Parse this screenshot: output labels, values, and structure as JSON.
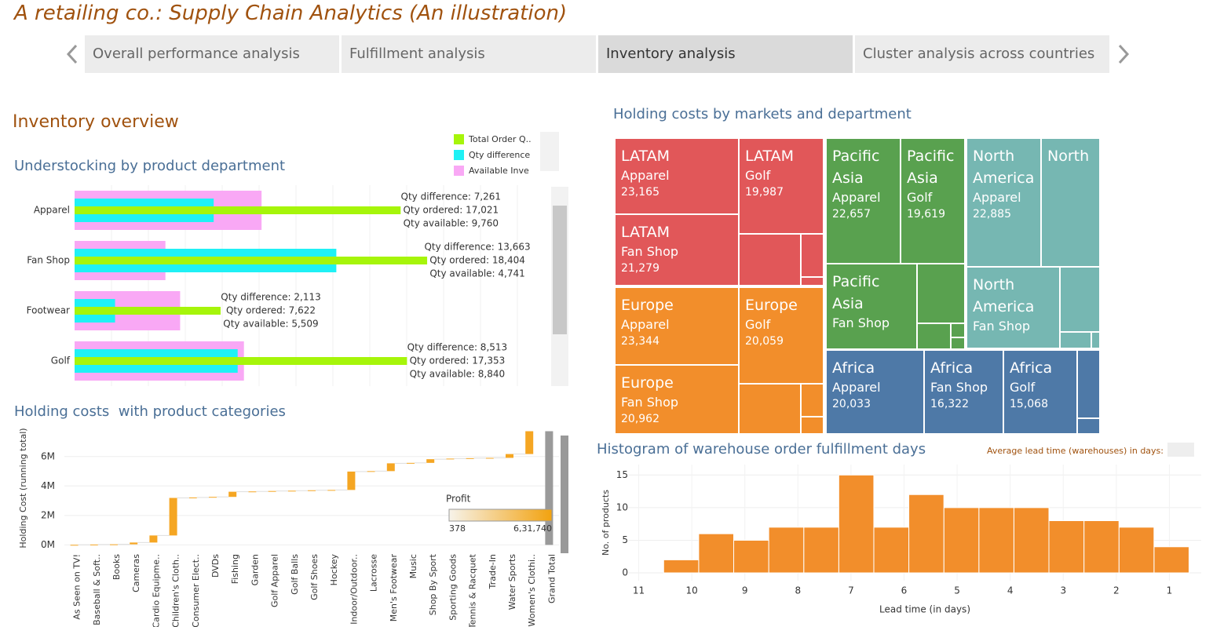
{
  "title": "A retailing co.: Supply Chain Analytics (An illustration)",
  "tabs": [
    "Overall performance analysis",
    "Fulfillment analysis",
    "Inventory analysis",
    "Cluster analysis across countries"
  ],
  "active_tab": 2,
  "section_title": "Inventory overview",
  "chart_data": [
    {
      "type": "bar",
      "orientation": "horizontal",
      "title": "Understocking by product department",
      "categories": [
        "Apparel",
        "Fan Shop",
        "Footwear",
        "Golf"
      ],
      "series": [
        {
          "name": "Total Order Q..",
          "color": "#a6f50a",
          "values": [
            17021,
            18404,
            7622,
            17353
          ],
          "value_labels": [
            "Qty ordered: 17,021",
            "Qty ordered: 18,404",
            "Qty ordered: 7,622",
            "Qty ordered: 17,353"
          ]
        },
        {
          "name": "Qty difference",
          "color": "#1ff1f5",
          "values": [
            7261,
            13663,
            2113,
            8513
          ],
          "value_labels": [
            "Qty difference: 7,261",
            "Qty difference: 13,663",
            "Qty difference: 2,113",
            "Qty difference: 8,513"
          ]
        },
        {
          "name": "Available Inve",
          "color": "#f9a8f5",
          "values": [
            9760,
            4741,
            5509,
            8840
          ],
          "value_labels": [
            "Qty available: 9,760",
            "Qty available: 4,741",
            "Qty available: 5,509",
            "Qty available: 8,840"
          ]
        }
      ],
      "xlim": [
        0,
        25000
      ],
      "grid": true
    },
    {
      "type": "waterfall",
      "title": "Holding costs  with product categories",
      "y_label": "Holding Cost (running total)",
      "categories": [
        "As Seen on TV!",
        "Baseball & Soft..",
        "Books",
        "Cameras",
        "Cardio Equipme..",
        "Children's Cloth..",
        "Consumer Elect..",
        "DVDs",
        "Fishing",
        "Garden",
        "Golf Apparel",
        "Golf Balls",
        "Golf Shoes",
        "Hockey",
        "Indoor/Outdoor..",
        "Lacrosse",
        "Men's Footwear",
        "Music",
        "Shop By Sport",
        "Sporting Goods",
        "Tennis & Racquet",
        "Trade-In",
        "Water Sports",
        "Women's Clothi.."
      ],
      "values": [
        5000,
        20000,
        15000,
        120000,
        480000,
        2550000,
        30000,
        40000,
        350000,
        20000,
        30000,
        20000,
        30000,
        20000,
        1250000,
        30000,
        530000,
        30000,
        250000,
        40000,
        30000,
        20000,
        260000,
        1550000
      ],
      "total_label": "Grand Total",
      "color": "#f5a623",
      "total_color": "#9a9a9a",
      "ylim": [
        -300000,
        7800000
      ],
      "yticks": [
        {
          "value": 0,
          "label": "0M"
        },
        {
          "value": 2000000,
          "label": "2M"
        },
        {
          "value": 4000000,
          "label": "4M"
        },
        {
          "value": 6000000,
          "label": "6M"
        }
      ],
      "color_legend": {
        "title": "Profit",
        "min": {
          "value": 378,
          "label": "378"
        },
        "max": {
          "value": 631740,
          "label": "6,31,740"
        },
        "colors": [
          "#f7f3ea",
          "#f2a20f"
        ]
      }
    },
    {
      "type": "treemap",
      "title": "Holding costs by markets and department",
      "colors": {
        "LATAM": "#e15759",
        "Europe": "#f28e2b",
        "Pacific Asia": "#59a14f",
        "North America": "#76b7b2",
        "North": "#76b7b2",
        "Africa": "#4e79a7"
      },
      "items": [
        {
          "market": "LATAM",
          "department": "Apparel",
          "value": 23165,
          "value_label": "23,165"
        },
        {
          "market": "LATAM",
          "department": "Golf",
          "value": 19987,
          "value_label": "19,987"
        },
        {
          "market": "LATAM",
          "department": "Fan Shop",
          "value": 21279,
          "value_label": "21,279"
        },
        {
          "market": "Europe",
          "department": "Apparel",
          "value": 23344,
          "value_label": "23,344"
        },
        {
          "market": "Europe",
          "department": "Golf",
          "value": 20059,
          "value_label": "20,059"
        },
        {
          "market": "Europe",
          "department": "Fan Shop",
          "value": 20962,
          "value_label": "20,962"
        },
        {
          "market": "Pacific Asia",
          "department": "Apparel",
          "value": 22657,
          "value_label": "22,657"
        },
        {
          "market": "Pacific Asia",
          "department": "Golf",
          "value": 19619,
          "value_label": "19,619"
        },
        {
          "market": "Pacific Asia",
          "department": "Fan Shop",
          "value": null
        },
        {
          "market": "North America",
          "department": "Apparel",
          "value": 22885,
          "value_label": "22,885"
        },
        {
          "market": "North",
          "department": null,
          "value": null
        },
        {
          "market": "North America",
          "department": "Fan Shop",
          "value": null
        },
        {
          "market": "Africa",
          "department": "Apparel",
          "value": 20033,
          "value_label": "20,033"
        },
        {
          "market": "Africa",
          "department": "Fan Shop",
          "value": 16322,
          "value_label": "16,322"
        },
        {
          "market": "Africa",
          "department": "Golf",
          "value": 15068,
          "value_label": "15,068"
        }
      ]
    },
    {
      "type": "histogram",
      "title": "Histogram of warehouse order fulfillment days",
      "x_label": "Lead time (in days)",
      "y_label": "No. of products",
      "control_label": "Average lead time (warehouses) in days:",
      "bins": [
        0.63,
        1.29,
        1.95,
        2.61,
        3.27,
        3.93,
        4.59,
        5.25,
        5.91,
        6.57,
        7.23,
        7.89,
        8.55,
        9.21,
        9.87,
        10.53
      ],
      "counts": [
        4,
        7,
        8,
        8,
        10,
        10,
        10,
        12,
        7,
        15,
        7,
        7,
        5,
        6,
        2
      ],
      "color": "#f28e2b",
      "xlim": [
        11.2,
        0.4
      ],
      "xticks": [
        11,
        10,
        9,
        8,
        7,
        6,
        5,
        4,
        3,
        2,
        1
      ],
      "ylim": [
        -1.2,
        16.6
      ],
      "yticks": [
        0,
        5,
        10,
        15
      ],
      "grid": true
    }
  ]
}
